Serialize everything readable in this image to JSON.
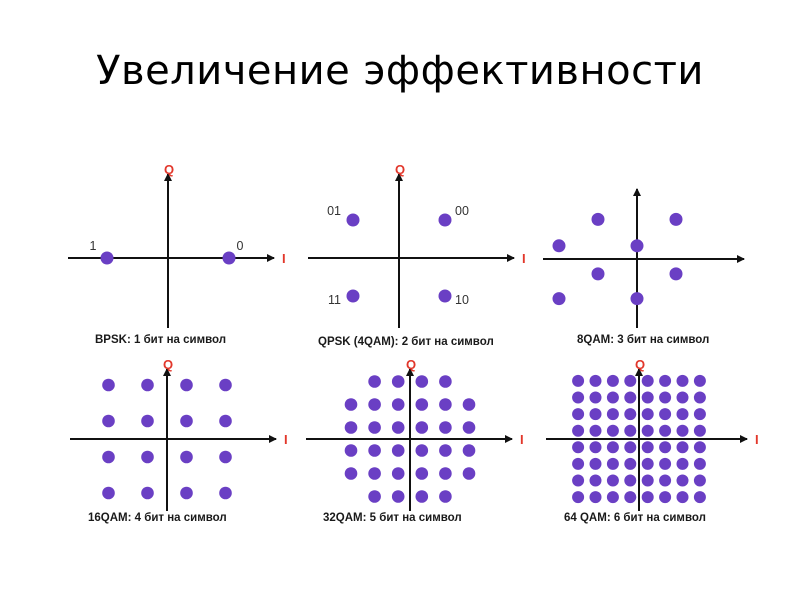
{
  "slide": {
    "title": "Увеличение эффективности",
    "footnote": "",
    "colors": {
      "axis": "#111111",
      "axis_label": "#e2372b",
      "point": "#6a3fc4",
      "point_label": "#333333",
      "background": "#ffffff"
    }
  },
  "panels": [
    {
      "id": "bpsk",
      "caption": "BPSK: 1 бит на символ",
      "axis_q_label": "Q",
      "axis_i_label": "I",
      "points": [
        {
          "i": -1,
          "q": 0,
          "label": "1"
        },
        {
          "i": 1,
          "q": 0,
          "label": "0"
        }
      ]
    },
    {
      "id": "qpsk",
      "caption": "QPSK (4QAM): 2 бит на символ",
      "axis_q_label": "Q",
      "axis_i_label": "I",
      "points": [
        {
          "i": -1,
          "q": 1,
          "label": "01"
        },
        {
          "i": 1,
          "q": 1,
          "label": "00"
        },
        {
          "i": -1,
          "q": -1,
          "label": "11"
        },
        {
          "i": 1,
          "q": -1,
          "label": "10"
        }
      ]
    },
    {
      "id": "8qam",
      "caption": "8QAM: 3 бит на символ",
      "axis_q_label": "",
      "axis_i_label": "",
      "points": [
        {
          "i": -1,
          "q": 1.2
        },
        {
          "i": 1,
          "q": 1.2
        },
        {
          "i": -2,
          "q": 0.4
        },
        {
          "i": 0,
          "q": 0.4
        },
        {
          "i": -1,
          "q": -0.45
        },
        {
          "i": 1,
          "q": -0.45
        },
        {
          "i": -2,
          "q": -1.2
        },
        {
          "i": 0,
          "q": -1.2
        }
      ]
    },
    {
      "id": "16qam",
      "caption": "16QAM: 4 бит на символ",
      "axis_q_label": "Q",
      "axis_i_label": "I",
      "grid": {
        "levels": [
          -3,
          -1,
          1,
          3
        ]
      }
    },
    {
      "id": "32qam",
      "caption": "32QAM: 5 бит на символ",
      "axis_q_label": "Q",
      "axis_i_label": "I",
      "grid": {
        "levels": [
          -5,
          -3,
          -1,
          1,
          3,
          5
        ],
        "exclude_corners": true
      }
    },
    {
      "id": "64qam",
      "caption": "64 QAM: 6 бит на символ",
      "axis_q_label": "Q",
      "axis_i_label": "I",
      "grid": {
        "levels": [
          -7,
          -5,
          -3,
          -1,
          1,
          3,
          5,
          7
        ]
      }
    }
  ]
}
